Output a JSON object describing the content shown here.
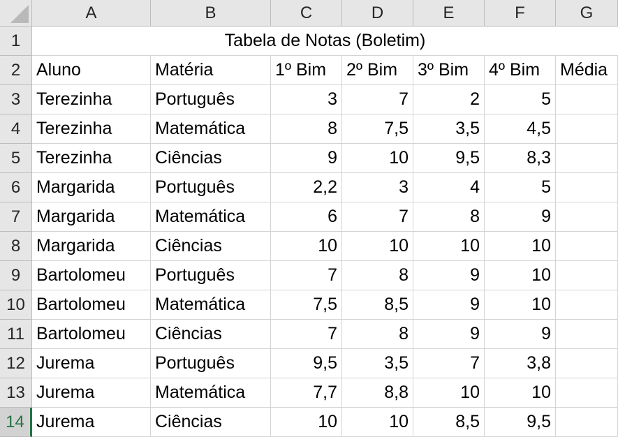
{
  "columns": [
    "A",
    "B",
    "C",
    "D",
    "E",
    "F",
    "G"
  ],
  "rows": [
    "1",
    "2",
    "3",
    "4",
    "5",
    "6",
    "7",
    "8",
    "9",
    "10",
    "11",
    "12",
    "13",
    "14"
  ],
  "active_row": "14",
  "title": "Tabela de Notas (Boletim)",
  "headers": [
    "Aluno",
    "Matéria",
    "1º Bim",
    "2º Bim",
    "3º Bim",
    "4º Bim",
    "Média"
  ],
  "data": [
    [
      "Terezinha",
      "Português",
      "3",
      "7",
      "2",
      "5"
    ],
    [
      "Terezinha",
      "Matemática",
      "8",
      "7,5",
      "3,5",
      "4,5"
    ],
    [
      "Terezinha",
      "Ciências",
      "9",
      "10",
      "9,5",
      "8,3"
    ],
    [
      "Margarida",
      "Português",
      "2,2",
      "3",
      "4",
      "5"
    ],
    [
      "Margarida",
      "Matemática",
      "6",
      "7",
      "8",
      "9"
    ],
    [
      "Margarida",
      "Ciências",
      "10",
      "10",
      "10",
      "10"
    ],
    [
      "Bartolomeu",
      "Português",
      "7",
      "8",
      "9",
      "10"
    ],
    [
      "Bartolomeu",
      "Matemática",
      "7,5",
      "8,5",
      "9",
      "10"
    ],
    [
      "Bartolomeu",
      "Ciências",
      "7",
      "8",
      "9",
      "9"
    ],
    [
      "Jurema",
      "Português",
      "9,5",
      "3,5",
      "7",
      "3,8"
    ],
    [
      "Jurema",
      "Matemática",
      "7,7",
      "8,8",
      "10",
      "10"
    ],
    [
      "Jurema",
      "Ciências",
      "10",
      "10",
      "8,5",
      "9,5"
    ]
  ],
  "colors": {
    "header_bg": "#e6e6e6",
    "active_accent": "#217346",
    "gridline": "#d4d4d4"
  }
}
